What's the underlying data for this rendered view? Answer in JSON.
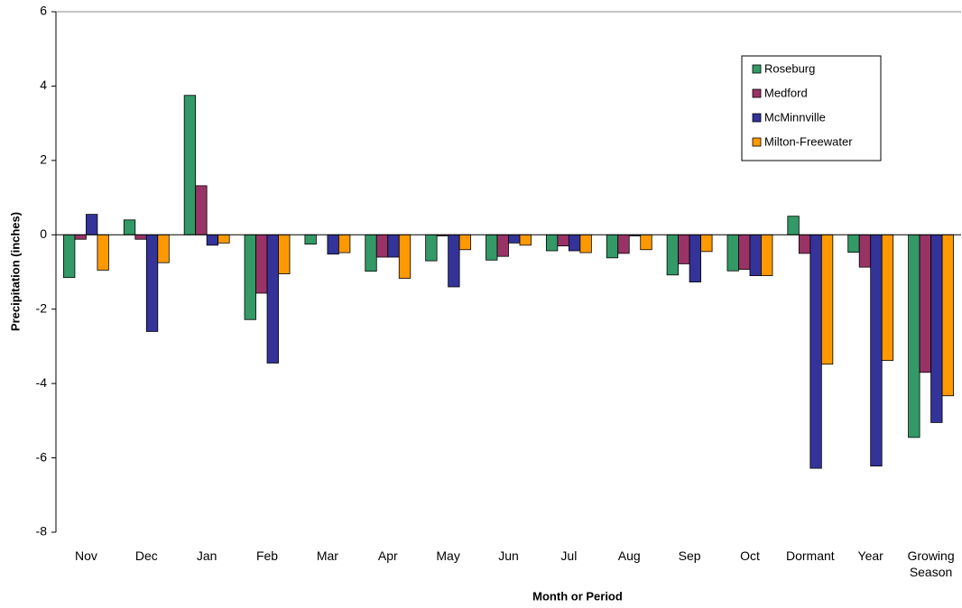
{
  "chart_data": {
    "type": "bar",
    "y_label": "Precipitation (inches)",
    "x_label": "Month or Period",
    "categories": [
      "Nov",
      "Dec",
      "Jan",
      "Feb",
      "Mar",
      "Apr",
      "May",
      "Jun",
      "Jul",
      "Aug",
      "Sep",
      "Oct",
      "Dormant",
      "Year",
      "Growing Season"
    ],
    "series": [
      {
        "name": "Roseburg",
        "color": "#339966",
        "values": [
          -1.15,
          0.4,
          3.75,
          -2.28,
          -0.25,
          -0.98,
          -0.7,
          -0.68,
          -0.43,
          -0.62,
          -1.08,
          -0.97,
          0.5,
          -0.47,
          -5.45
        ]
      },
      {
        "name": "Medford",
        "color": "#993366",
        "values": [
          -0.12,
          -0.12,
          1.32,
          -1.57,
          0,
          -0.6,
          -0.03,
          -0.58,
          -0.3,
          -0.5,
          -0.78,
          -0.93,
          -0.5,
          -0.87,
          -3.7
        ]
      },
      {
        "name": "McMinnville",
        "color": "#333399",
        "values": [
          0.55,
          -2.6,
          -0.28,
          -3.45,
          -0.52,
          -0.6,
          -1.4,
          -0.22,
          -0.43,
          -0.03,
          -1.27,
          -1.1,
          -6.28,
          -6.22,
          -5.05
        ]
      },
      {
        "name": "Milton-Freewater",
        "color": "#ff9900",
        "values": [
          -0.95,
          -0.75,
          -0.22,
          -1.05,
          -0.48,
          -1.17,
          -0.4,
          -0.28,
          -0.48,
          -0.4,
          -0.45,
          -1.1,
          -3.48,
          -3.38,
          -4.33
        ]
      }
    ],
    "ylim": [
      -8,
      6
    ],
    "yticks": [
      -8,
      -6,
      -4,
      -2,
      0,
      2,
      4,
      6
    ],
    "legend": "upper right"
  }
}
